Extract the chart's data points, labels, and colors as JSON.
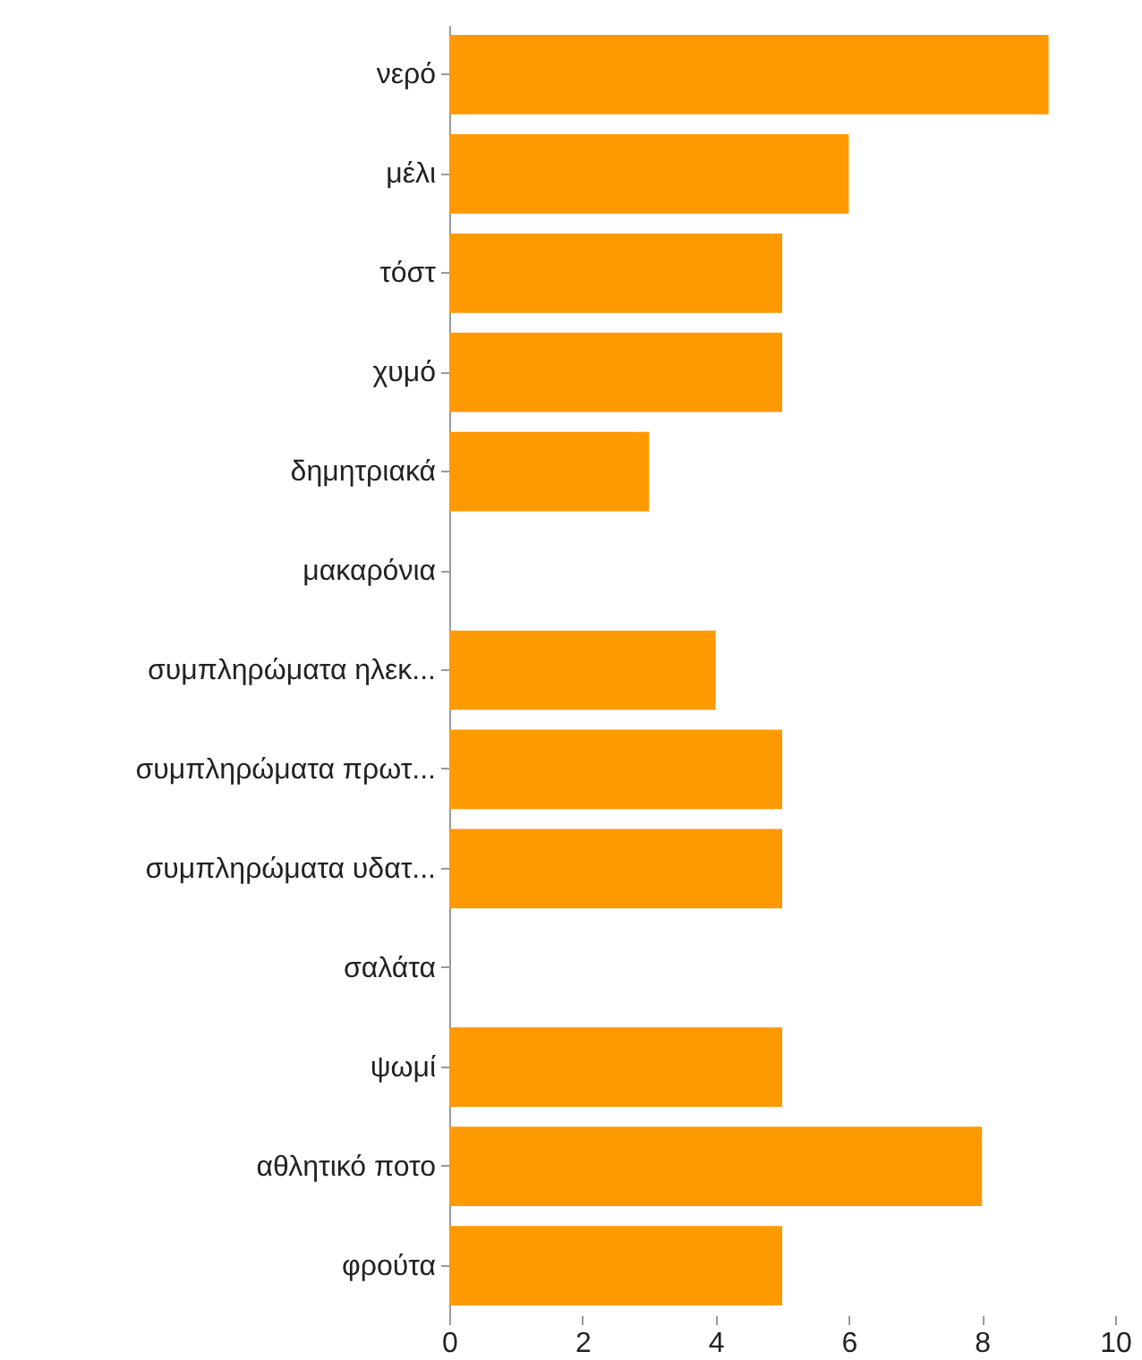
{
  "chart_data": {
    "type": "bar",
    "orientation": "horizontal",
    "categories": [
      "νερό",
      "μέλι",
      "τόστ",
      "χυμό",
      "δημητριακά",
      "μακαρόνια",
      "συμπληρώματα ηλεκ...",
      "συμπληρώματα πρωτ...",
      "συμπληρώματα υδατ...",
      "σαλάτα",
      "ψωμί",
      "αθλητικό ποτο",
      "φρούτα"
    ],
    "values": [
      9,
      6,
      5,
      5,
      3,
      0,
      4,
      5,
      5,
      0,
      5,
      8,
      5
    ],
    "color": "#ff9900",
    "xlim": [
      0,
      10
    ],
    "xticks": [
      0,
      2,
      4,
      6,
      8,
      10
    ],
    "grid": false
  }
}
